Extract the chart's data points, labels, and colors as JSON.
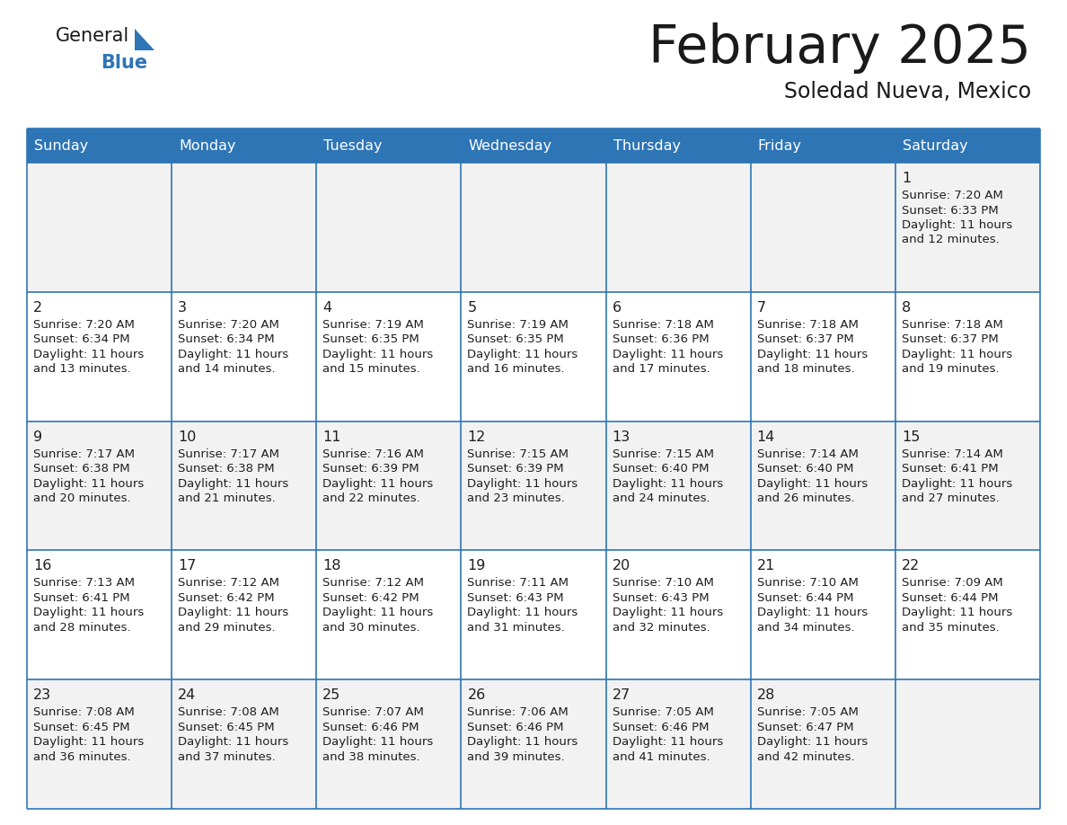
{
  "title": "February 2025",
  "subtitle": "Soledad Nueva, Mexico",
  "header_color": "#2e75b6",
  "header_text_color": "#ffffff",
  "day_names": [
    "Sunday",
    "Monday",
    "Tuesday",
    "Wednesday",
    "Thursday",
    "Friday",
    "Saturday"
  ],
  "cell_bg_even": "#f2f2f2",
  "cell_bg_odd": "#ffffff",
  "border_color": "#2e75b6",
  "number_color": "#1f1f1f",
  "text_color": "#1f1f1f",
  "title_color": "#1a1a1a",
  "subtitle_color": "#1a1a1a",
  "logo_general_color": "#1a1a1a",
  "logo_blue_color": "#2e75b6",
  "logo_triangle_color": "#2e75b6",
  "days": [
    {
      "day": 1,
      "col": 6,
      "row": 0,
      "sunrise": "7:20 AM",
      "sunset": "6:33 PM",
      "daylight": "11 hours and 12 minutes."
    },
    {
      "day": 2,
      "col": 0,
      "row": 1,
      "sunrise": "7:20 AM",
      "sunset": "6:34 PM",
      "daylight": "11 hours and 13 minutes."
    },
    {
      "day": 3,
      "col": 1,
      "row": 1,
      "sunrise": "7:20 AM",
      "sunset": "6:34 PM",
      "daylight": "11 hours and 14 minutes."
    },
    {
      "day": 4,
      "col": 2,
      "row": 1,
      "sunrise": "7:19 AM",
      "sunset": "6:35 PM",
      "daylight": "11 hours and 15 minutes."
    },
    {
      "day": 5,
      "col": 3,
      "row": 1,
      "sunrise": "7:19 AM",
      "sunset": "6:35 PM",
      "daylight": "11 hours and 16 minutes."
    },
    {
      "day": 6,
      "col": 4,
      "row": 1,
      "sunrise": "7:18 AM",
      "sunset": "6:36 PM",
      "daylight": "11 hours and 17 minutes."
    },
    {
      "day": 7,
      "col": 5,
      "row": 1,
      "sunrise": "7:18 AM",
      "sunset": "6:37 PM",
      "daylight": "11 hours and 18 minutes."
    },
    {
      "day": 8,
      "col": 6,
      "row": 1,
      "sunrise": "7:18 AM",
      "sunset": "6:37 PM",
      "daylight": "11 hours and 19 minutes."
    },
    {
      "day": 9,
      "col": 0,
      "row": 2,
      "sunrise": "7:17 AM",
      "sunset": "6:38 PM",
      "daylight": "11 hours and 20 minutes."
    },
    {
      "day": 10,
      "col": 1,
      "row": 2,
      "sunrise": "7:17 AM",
      "sunset": "6:38 PM",
      "daylight": "11 hours and 21 minutes."
    },
    {
      "day": 11,
      "col": 2,
      "row": 2,
      "sunrise": "7:16 AM",
      "sunset": "6:39 PM",
      "daylight": "11 hours and 22 minutes."
    },
    {
      "day": 12,
      "col": 3,
      "row": 2,
      "sunrise": "7:15 AM",
      "sunset": "6:39 PM",
      "daylight": "11 hours and 23 minutes."
    },
    {
      "day": 13,
      "col": 4,
      "row": 2,
      "sunrise": "7:15 AM",
      "sunset": "6:40 PM",
      "daylight": "11 hours and 24 minutes."
    },
    {
      "day": 14,
      "col": 5,
      "row": 2,
      "sunrise": "7:14 AM",
      "sunset": "6:40 PM",
      "daylight": "11 hours and 26 minutes."
    },
    {
      "day": 15,
      "col": 6,
      "row": 2,
      "sunrise": "7:14 AM",
      "sunset": "6:41 PM",
      "daylight": "11 hours and 27 minutes."
    },
    {
      "day": 16,
      "col": 0,
      "row": 3,
      "sunrise": "7:13 AM",
      "sunset": "6:41 PM",
      "daylight": "11 hours and 28 minutes."
    },
    {
      "day": 17,
      "col": 1,
      "row": 3,
      "sunrise": "7:12 AM",
      "sunset": "6:42 PM",
      "daylight": "11 hours and 29 minutes."
    },
    {
      "day": 18,
      "col": 2,
      "row": 3,
      "sunrise": "7:12 AM",
      "sunset": "6:42 PM",
      "daylight": "11 hours and 30 minutes."
    },
    {
      "day": 19,
      "col": 3,
      "row": 3,
      "sunrise": "7:11 AM",
      "sunset": "6:43 PM",
      "daylight": "11 hours and 31 minutes."
    },
    {
      "day": 20,
      "col": 4,
      "row": 3,
      "sunrise": "7:10 AM",
      "sunset": "6:43 PM",
      "daylight": "11 hours and 32 minutes."
    },
    {
      "day": 21,
      "col": 5,
      "row": 3,
      "sunrise": "7:10 AM",
      "sunset": "6:44 PM",
      "daylight": "11 hours and 34 minutes."
    },
    {
      "day": 22,
      "col": 6,
      "row": 3,
      "sunrise": "7:09 AM",
      "sunset": "6:44 PM",
      "daylight": "11 hours and 35 minutes."
    },
    {
      "day": 23,
      "col": 0,
      "row": 4,
      "sunrise": "7:08 AM",
      "sunset": "6:45 PM",
      "daylight": "11 hours and 36 minutes."
    },
    {
      "day": 24,
      "col": 1,
      "row": 4,
      "sunrise": "7:08 AM",
      "sunset": "6:45 PM",
      "daylight": "11 hours and 37 minutes."
    },
    {
      "day": 25,
      "col": 2,
      "row": 4,
      "sunrise": "7:07 AM",
      "sunset": "6:46 PM",
      "daylight": "11 hours and 38 minutes."
    },
    {
      "day": 26,
      "col": 3,
      "row": 4,
      "sunrise": "7:06 AM",
      "sunset": "6:46 PM",
      "daylight": "11 hours and 39 minutes."
    },
    {
      "day": 27,
      "col": 4,
      "row": 4,
      "sunrise": "7:05 AM",
      "sunset": "6:46 PM",
      "daylight": "11 hours and 41 minutes."
    },
    {
      "day": 28,
      "col": 5,
      "row": 4,
      "sunrise": "7:05 AM",
      "sunset": "6:47 PM",
      "daylight": "11 hours and 42 minutes."
    }
  ]
}
